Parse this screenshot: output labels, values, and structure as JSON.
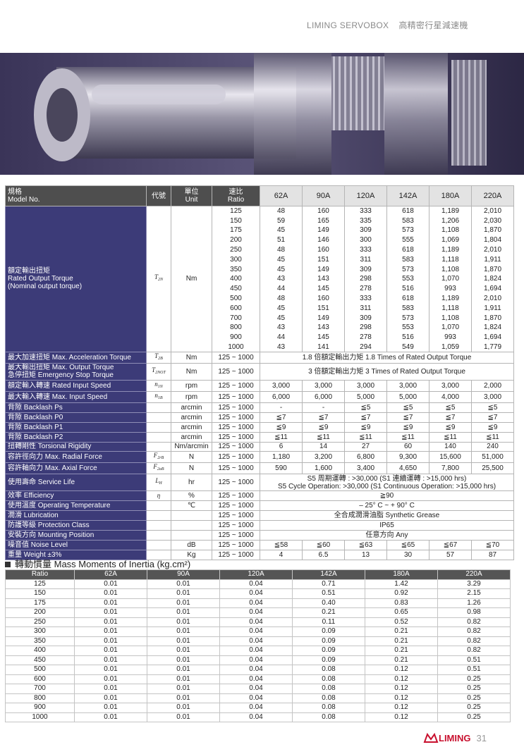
{
  "header": {
    "brand": "LIMING SERVOBOX",
    "title": "高精密行星減速機"
  },
  "spec_table": {
    "header": {
      "model": [
        "規格",
        "Model No."
      ],
      "symbol": "代號",
      "unit": [
        "單位",
        "Unit"
      ],
      "ratio": [
        "速比",
        "Ratio"
      ],
      "models": [
        "62A",
        "90A",
        "120A",
        "142A",
        "180A",
        "220A"
      ]
    },
    "rated_torque": {
      "label": [
        "額定輸出扭矩",
        "Rated Output Torque",
        "(Nominal output torque)"
      ],
      "symbol": {
        "base": "T",
        "sub": "2N"
      },
      "unit": "Nm",
      "rows": [
        {
          "ratio": "125",
          "values": [
            "48",
            "160",
            "333",
            "618",
            "1,189",
            "2,010"
          ]
        },
        {
          "ratio": "150",
          "values": [
            "59",
            "165",
            "335",
            "583",
            "1,206",
            "2,030"
          ]
        },
        {
          "ratio": "175",
          "values": [
            "45",
            "149",
            "309",
            "573",
            "1,108",
            "1,870"
          ]
        },
        {
          "ratio": "200",
          "values": [
            "51",
            "146",
            "300",
            "555",
            "1,069",
            "1,804"
          ]
        },
        {
          "ratio": "250",
          "values": [
            "48",
            "160",
            "333",
            "618",
            "1,189",
            "2,010"
          ]
        },
        {
          "ratio": "300",
          "values": [
            "45",
            "151",
            "311",
            "583",
            "1,118",
            "1,911"
          ]
        },
        {
          "ratio": "350",
          "values": [
            "45",
            "149",
            "309",
            "573",
            "1,108",
            "1,870"
          ]
        },
        {
          "ratio": "400",
          "values": [
            "43",
            "143",
            "298",
            "553",
            "1,070",
            "1,824"
          ]
        },
        {
          "ratio": "450",
          "values": [
            "44",
            "145",
            "278",
            "516",
            "993",
            "1,694"
          ]
        },
        {
          "ratio": "500",
          "values": [
            "48",
            "160",
            "333",
            "618",
            "1,189",
            "2,010"
          ]
        },
        {
          "ratio": "600",
          "values": [
            "45",
            "151",
            "311",
            "583",
            "1,118",
            "1,911"
          ]
        },
        {
          "ratio": "700",
          "values": [
            "45",
            "149",
            "309",
            "573",
            "1,108",
            "1,870"
          ]
        },
        {
          "ratio": "800",
          "values": [
            "43",
            "143",
            "298",
            "553",
            "1,070",
            "1,824"
          ]
        },
        {
          "ratio": "900",
          "values": [
            "44",
            "145",
            "278",
            "516",
            "993",
            "1,694"
          ]
        },
        {
          "ratio": "1000",
          "values": [
            "43",
            "141",
            "294",
            "549",
            "1,059",
            "1,779"
          ]
        }
      ]
    },
    "rows": [
      {
        "label": [
          "最大加速扭矩 Max. Acceleration Torque"
        ],
        "symbol": {
          "base": "T",
          "sub": "2B"
        },
        "unit": "Nm",
        "ratio": "125 ~ 1000",
        "span": [
          "1.8 倍額定輸出力矩  1.8 Times of Rated Output Torque"
        ]
      },
      {
        "label": [
          "最大輸出扭矩  Max. Output Torque",
          "急停扭矩  Emergency Stop Torque"
        ],
        "symbol": {
          "base": "T",
          "sub": "2NOT"
        },
        "unit": "Nm",
        "ratio": "125 ~ 1000",
        "span": [
          "3 倍額定輸出力矩  3 Times of Rated Output Torque"
        ]
      },
      {
        "label": [
          "額定輸入轉速  Rated Input Speed"
        ],
        "symbol": {
          "base": "n",
          "sub": "1N"
        },
        "unit": "rpm",
        "ratio": "125 ~ 1000",
        "values": [
          "3,000",
          "3,000",
          "3,000",
          "3,000",
          "3,000",
          "2,000"
        ]
      },
      {
        "label": [
          "最大輸入轉速  Max. Input Speed"
        ],
        "symbol": {
          "base": "n",
          "sub": "1B"
        },
        "unit": "rpm",
        "ratio": "125 ~ 1000",
        "values": [
          "6,000",
          "6,000",
          "5,000",
          "5,000",
          "4,000",
          "3,000"
        ]
      },
      {
        "label": [
          "背隙  Backlash Ps"
        ],
        "unit": "arcmin",
        "ratio": "125 ~ 1000",
        "values": [
          "-",
          "-",
          "≦5",
          "≦5",
          "≦5",
          "≦5"
        ]
      },
      {
        "label": [
          "背隙  Backlash P0"
        ],
        "unit": "arcmin",
        "ratio": "125 ~ 1000",
        "values": [
          "≦7",
          "≦7",
          "≦7",
          "≦7",
          "≦7",
          "≦7"
        ]
      },
      {
        "label": [
          "背隙  Backlash P1"
        ],
        "unit": "arcmin",
        "ratio": "125 ~ 1000",
        "values": [
          "≦9",
          "≦9",
          "≦9",
          "≦9",
          "≦9",
          "≦9"
        ]
      },
      {
        "label": [
          "背隙  Backlash P2"
        ],
        "unit": "arcmin",
        "ratio": "125 ~ 1000",
        "values": [
          "≦11",
          "≦11",
          "≦11",
          "≦11",
          "≦11",
          "≦11"
        ]
      },
      {
        "label": [
          "扭轉剛性  Torsional Rigidity"
        ],
        "unit": "Nm/arcmin",
        "ratio": "125 ~ 1000",
        "values": [
          "6",
          "14",
          "27",
          "60",
          "140",
          "240"
        ]
      },
      {
        "label": [
          "容許徑向力  Max. Radial Force"
        ],
        "symbol": {
          "base": "F",
          "sub": "2rB"
        },
        "unit": "N",
        "ratio": "125 ~ 1000",
        "values": [
          "1,180",
          "3,200",
          "6,800",
          "9,300",
          "15,600",
          "51,000"
        ]
      },
      {
        "label": [
          "容許軸向力  Max. Axial Force"
        ],
        "symbol": {
          "base": "F",
          "sub": "2aB"
        },
        "unit": "N",
        "ratio": "125 ~ 1000",
        "values": [
          "590",
          "1,600",
          "3,400",
          "4,650",
          "7,800",
          "25,500"
        ]
      },
      {
        "label": [
          "使用壽命  Service Life"
        ],
        "symbol": {
          "base": "L",
          "sub": "H"
        },
        "unit": "hr",
        "ratio": "125 ~ 1000",
        "span": [
          "S5 周期運轉 : >30,000 (S1 連續運轉 : >15,000 hrs)",
          "S5 Cycle Operation: >30,000 (S1 Continuous Operation: >15,000 hrs)"
        ]
      },
      {
        "label": [
          "效率  Efficiency"
        ],
        "symbol": {
          "base": "η"
        },
        "unit": "%",
        "ratio": "125 ~ 1000",
        "span": [
          "≧90"
        ]
      },
      {
        "label": [
          "使用溫度  Operating Temperature"
        ],
        "unit": "℃",
        "ratio": "125 ~ 1000",
        "span": [
          "– 25° C  ~  + 90° C"
        ]
      },
      {
        "label": [
          "潤滑  Lubrication"
        ],
        "ratio": "125 ~ 1000",
        "span": [
          "全合成潤滑油脂  Synthetic Grease"
        ]
      },
      {
        "label": [
          "防護等級  Protection Class"
        ],
        "ratio": "125 ~ 1000",
        "span": [
          "IP65"
        ]
      },
      {
        "label": [
          "安裝方向  Mounting Position"
        ],
        "ratio": "125 ~ 1000",
        "span": [
          "任意方向  Any"
        ]
      },
      {
        "label": [
          "噪音值  Noise Level"
        ],
        "unit": "dB",
        "ratio": "125 ~ 1000",
        "values": [
          "≦58",
          "≦60",
          "≦63",
          "≦65",
          "≦67",
          "≦70"
        ]
      },
      {
        "label": [
          "重量  Weight  ±3%"
        ],
        "unit": "Kg",
        "ratio": "125 ~ 1000",
        "values": [
          "4",
          "6.5",
          "13",
          "30",
          "57",
          "87"
        ]
      }
    ]
  },
  "inertia": {
    "title": "轉動慣量 Mass Moments of Inertia (kg.cm²)",
    "columns": [
      "Ratio",
      "62A",
      "90A",
      "120A",
      "142A",
      "180A",
      "220A"
    ],
    "rows": [
      [
        "125",
        "0.01",
        "0.01",
        "0.04",
        "0.71",
        "1.42",
        "3.29"
      ],
      [
        "150",
        "0.01",
        "0.01",
        "0.04",
        "0.51",
        "0.92",
        "2.15"
      ],
      [
        "175",
        "0.01",
        "0.01",
        "0.04",
        "0.40",
        "0.83",
        "1.26"
      ],
      [
        "200",
        "0.01",
        "0.01",
        "0.04",
        "0.21",
        "0.65",
        "0.98"
      ],
      [
        "250",
        "0.01",
        "0.01",
        "0.04",
        "0.11",
        "0.52",
        "0.82"
      ],
      [
        "300",
        "0.01",
        "0.01",
        "0.04",
        "0.09",
        "0.21",
        "0.82"
      ],
      [
        "350",
        "0.01",
        "0.01",
        "0.04",
        "0.09",
        "0.21",
        "0.82"
      ],
      [
        "400",
        "0.01",
        "0.01",
        "0.04",
        "0.09",
        "0.21",
        "0.82"
      ],
      [
        "450",
        "0.01",
        "0.01",
        "0.04",
        "0.09",
        "0.21",
        "0.51"
      ],
      [
        "500",
        "0.01",
        "0.01",
        "0.04",
        "0.08",
        "0.12",
        "0.51"
      ],
      [
        "600",
        "0.01",
        "0.01",
        "0.04",
        "0.08",
        "0.12",
        "0.25"
      ],
      [
        "700",
        "0.01",
        "0.01",
        "0.04",
        "0.08",
        "0.12",
        "0.25"
      ],
      [
        "800",
        "0.01",
        "0.01",
        "0.04",
        "0.08",
        "0.12",
        "0.25"
      ],
      [
        "900",
        "0.01",
        "0.01",
        "0.04",
        "0.08",
        "0.12",
        "0.25"
      ],
      [
        "1000",
        "0.01",
        "0.01",
        "0.04",
        "0.08",
        "0.12",
        "0.25"
      ]
    ]
  },
  "footer": {
    "logo": "LIMING",
    "page": "31"
  }
}
